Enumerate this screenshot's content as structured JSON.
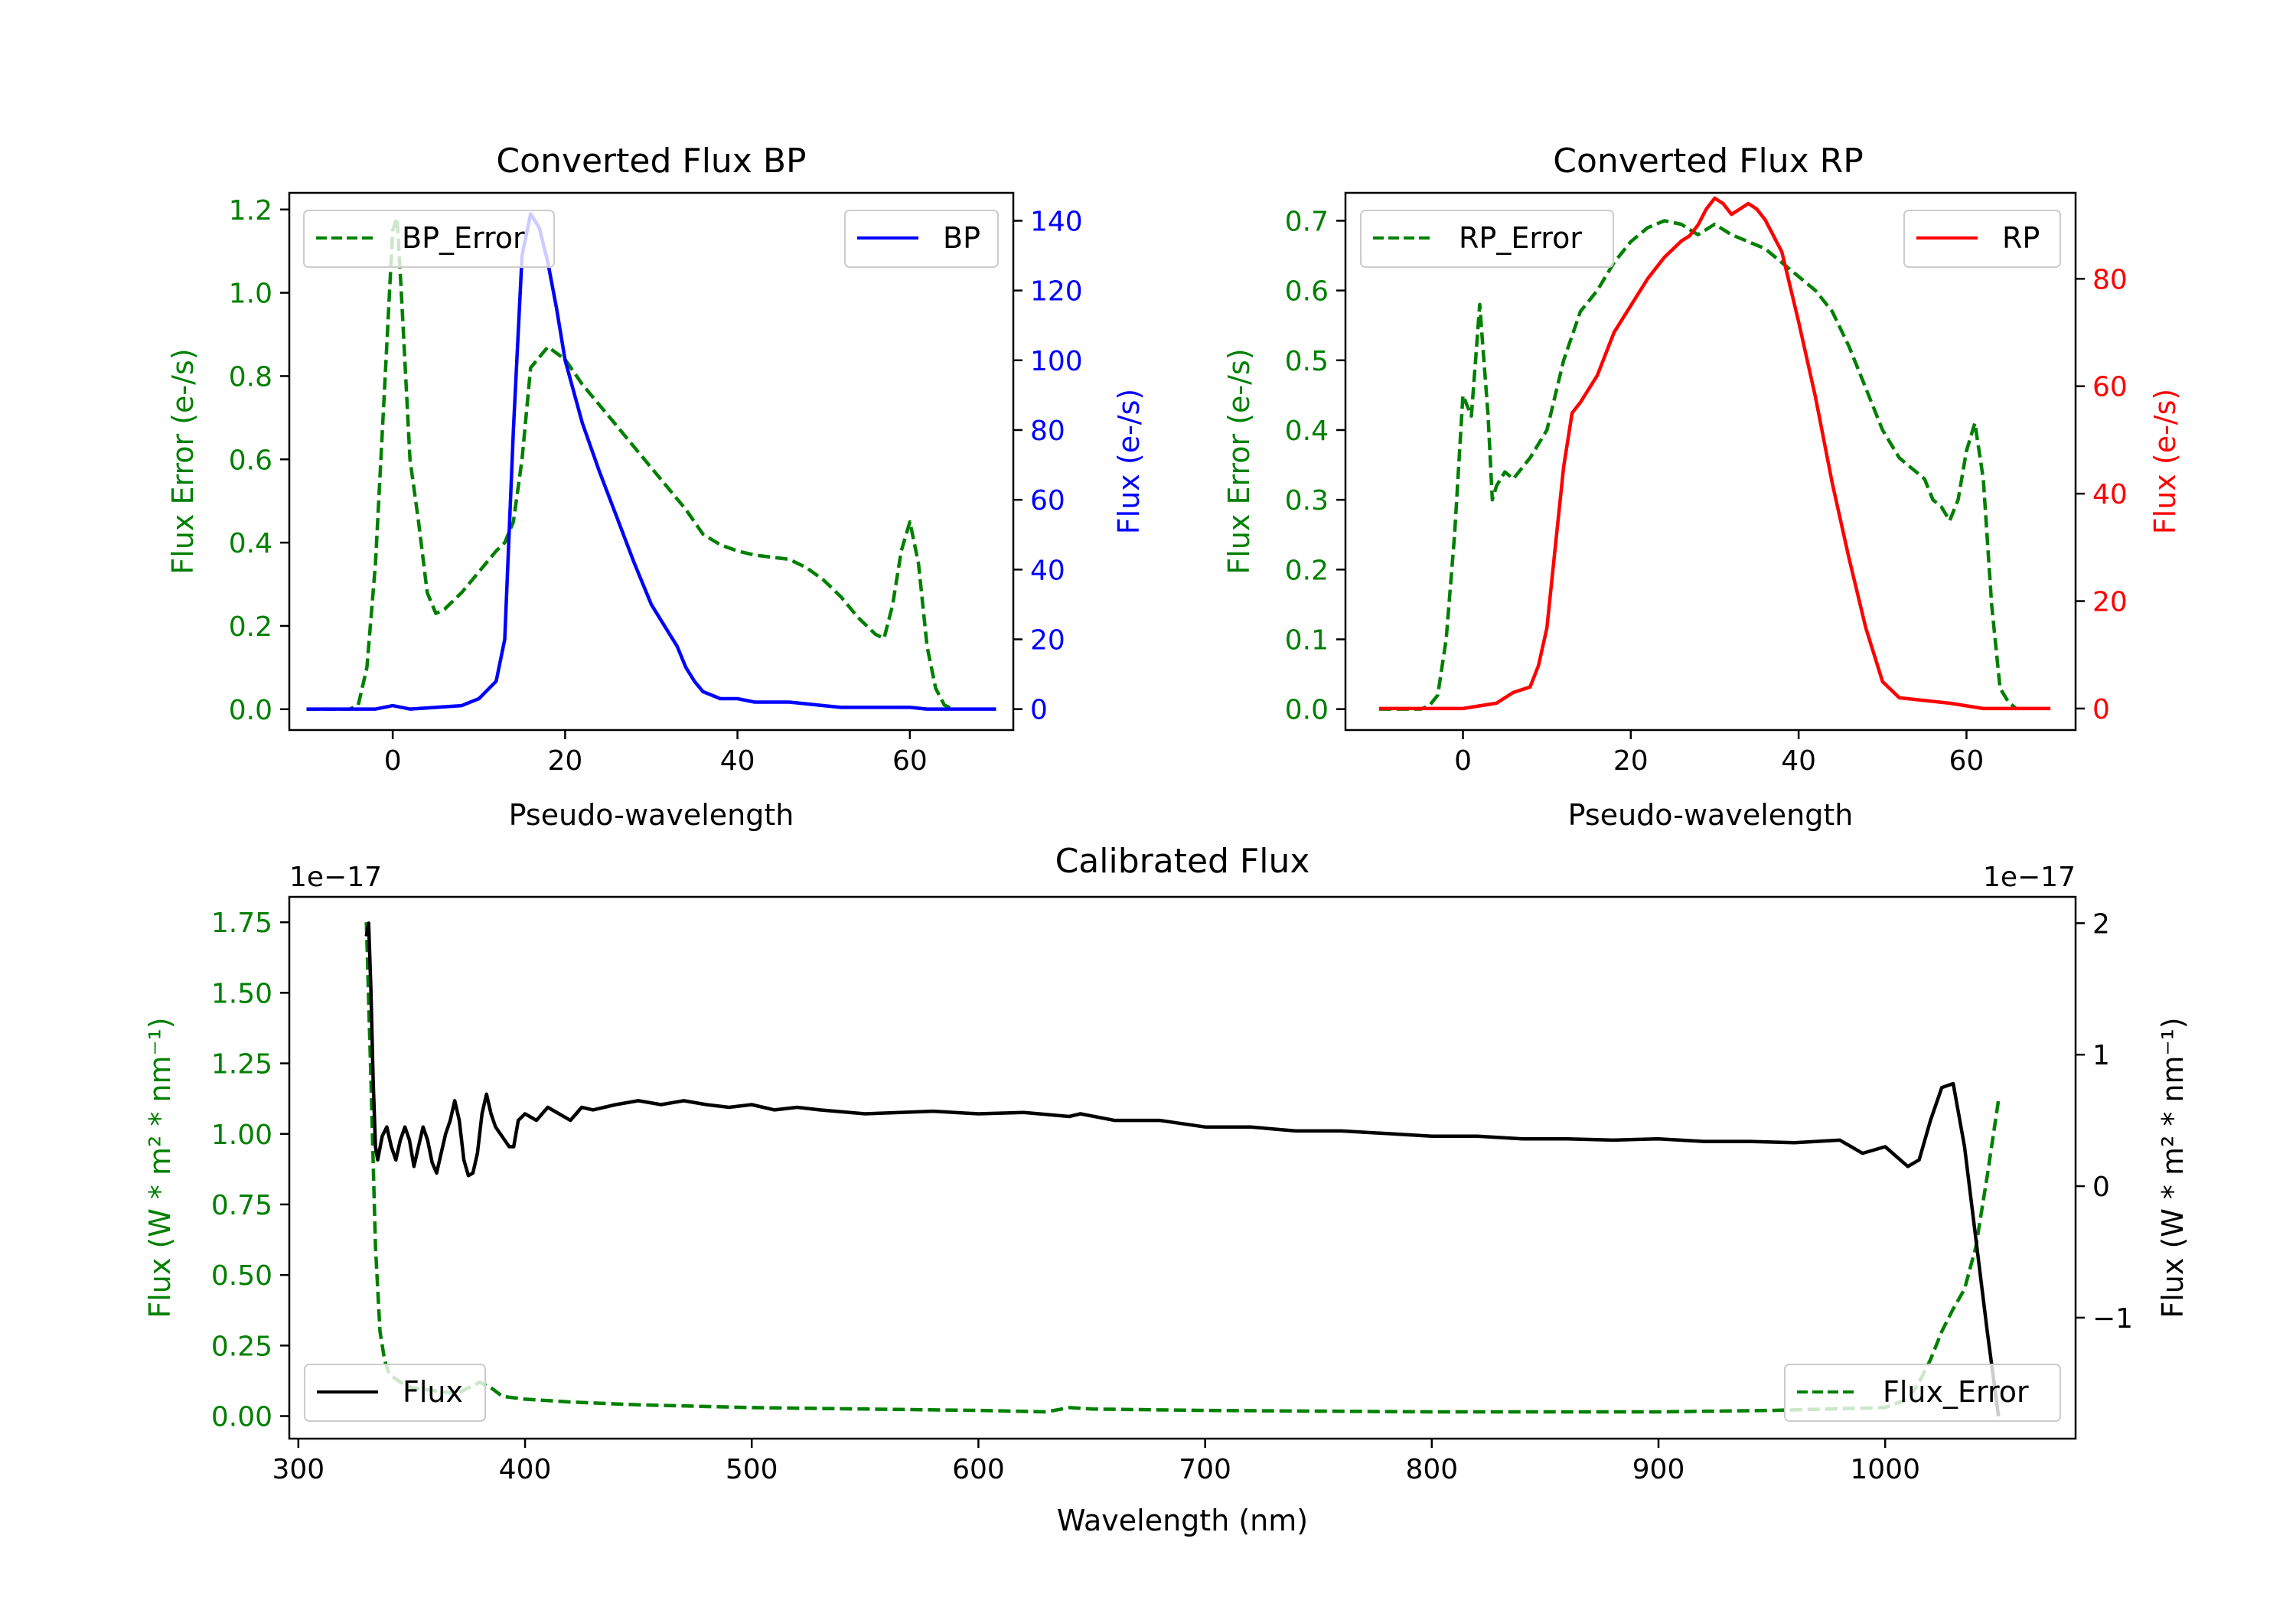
{
  "colors": {
    "green": "#008000",
    "blue": "#0000ff",
    "red": "#ff0000",
    "black": "#000000"
  },
  "chart_data": [
    {
      "id": "bp",
      "type": "line",
      "title": "Converted Flux BP",
      "xlabel": "Pseudo-wavelength",
      "ylabel_left": "Flux Error (e-/s)",
      "ylabel_right": "Flux (e-/s)",
      "xlim": [
        -12,
        72
      ],
      "ylim_left": [
        -0.05,
        1.24
      ],
      "ylim_right": [
        -6,
        148
      ],
      "xticks": [
        "0",
        "20",
        "40",
        "60"
      ],
      "yticks_left": [
        "0.0",
        "0.2",
        "0.4",
        "0.6",
        "0.8",
        "1.0",
        "1.2"
      ],
      "yticks_right": [
        "0",
        "20",
        "40",
        "60",
        "80",
        "100",
        "120",
        "140"
      ],
      "series": [
        {
          "name": "BP_Error",
          "axis": "left",
          "style": "dashed",
          "color": "#008000",
          "x": [
            -10,
            -5,
            -4,
            -3,
            -2,
            -1,
            0,
            0.5,
            1,
            2,
            3,
            4,
            5,
            6,
            8,
            10,
            12,
            13,
            14,
            15,
            16,
            18,
            20,
            22,
            24,
            26,
            28,
            30,
            32,
            34,
            36,
            38,
            40,
            42,
            44,
            46,
            48,
            50,
            52,
            54,
            56,
            57,
            58,
            59,
            60,
            61,
            62,
            63,
            64,
            65
          ],
          "y": [
            0,
            0,
            0.01,
            0.1,
            0.35,
            0.75,
            1.15,
            1.18,
            1.0,
            0.6,
            0.45,
            0.28,
            0.23,
            0.24,
            0.28,
            0.33,
            0.38,
            0.4,
            0.45,
            0.6,
            0.82,
            0.87,
            0.84,
            0.78,
            0.73,
            0.68,
            0.63,
            0.58,
            0.53,
            0.48,
            0.42,
            0.395,
            0.38,
            0.37,
            0.365,
            0.36,
            0.34,
            0.31,
            0.27,
            0.22,
            0.18,
            0.17,
            0.25,
            0.38,
            0.45,
            0.35,
            0.15,
            0.05,
            0.01,
            0
          ]
        },
        {
          "name": "BP",
          "axis": "right",
          "style": "solid",
          "color": "#0000ff",
          "x": [
            -10,
            -2,
            0,
            2,
            5,
            8,
            10,
            12,
            13,
            14,
            15,
            16,
            17,
            18,
            19,
            20,
            22,
            24,
            26,
            28,
            30,
            32,
            33,
            34,
            35,
            36,
            37,
            38,
            40,
            42,
            44,
            46,
            48,
            50,
            52,
            54,
            56,
            58,
            60,
            62,
            65,
            70
          ],
          "y": [
            0,
            0,
            1,
            0,
            0.5,
            1,
            3,
            8,
            20,
            80,
            130,
            142,
            138,
            128,
            115,
            100,
            82,
            68,
            55,
            42,
            30,
            22,
            18,
            12,
            8,
            5,
            4,
            3,
            3,
            2,
            2,
            2,
            1.5,
            1,
            0.5,
            0.5,
            0.5,
            0.5,
            0.5,
            0,
            0,
            0
          ]
        }
      ],
      "legend": [
        {
          "label": "BP_Error",
          "position": "top-left"
        },
        {
          "label": "BP",
          "position": "top-right"
        }
      ]
    },
    {
      "id": "rp",
      "type": "line",
      "title": "Converted Flux RP",
      "xlabel": "Pseudo-wavelength",
      "ylabel_left": "Flux Error (e-/s)",
      "ylabel_right": "Flux (e-/s)",
      "xlim": [
        -14,
        73
      ],
      "ylim_left": [
        -0.03,
        0.74
      ],
      "ylim_right": [
        -4,
        96
      ],
      "xticks": [
        "0",
        "20",
        "40",
        "60"
      ],
      "yticks_left": [
        "0.0",
        "0.1",
        "0.2",
        "0.3",
        "0.4",
        "0.5",
        "0.6",
        "0.7"
      ],
      "yticks_right": [
        "0",
        "20",
        "40",
        "60",
        "80"
      ],
      "series": [
        {
          "name": "RP_Error",
          "axis": "left",
          "style": "dashed",
          "color": "#008000",
          "x": [
            -10,
            -5,
            -4,
            -3,
            -2,
            -1,
            0,
            1,
            1.5,
            2,
            2.5,
            3,
            3.5,
            4,
            5,
            6,
            8,
            10,
            12,
            14,
            16,
            18,
            20,
            22,
            24,
            26,
            28,
            30,
            32,
            34,
            36,
            38,
            40,
            42,
            44,
            46,
            48,
            50,
            52,
            54,
            55,
            56,
            57,
            58,
            59,
            60,
            61,
            62,
            63,
            64,
            65,
            66
          ],
          "y": [
            0,
            0,
            0.005,
            0.02,
            0.1,
            0.25,
            0.45,
            0.42,
            0.5,
            0.58,
            0.5,
            0.42,
            0.3,
            0.32,
            0.34,
            0.33,
            0.36,
            0.4,
            0.5,
            0.57,
            0.6,
            0.64,
            0.67,
            0.69,
            0.7,
            0.695,
            0.68,
            0.695,
            0.68,
            0.67,
            0.66,
            0.64,
            0.62,
            0.6,
            0.57,
            0.52,
            0.46,
            0.4,
            0.36,
            0.34,
            0.33,
            0.3,
            0.29,
            0.27,
            0.3,
            0.37,
            0.41,
            0.33,
            0.15,
            0.03,
            0.01,
            0
          ]
        },
        {
          "name": "RP",
          "axis": "right",
          "style": "solid",
          "color": "#ff0000",
          "x": [
            -10,
            -2,
            0,
            2,
            4,
            5,
            6,
            8,
            9,
            10,
            11,
            12,
            13,
            14,
            16,
            18,
            20,
            22,
            24,
            26,
            27,
            28,
            29,
            30,
            31,
            32,
            33,
            34,
            35,
            36,
            38,
            40,
            42,
            44,
            46,
            48,
            50,
            52,
            55,
            58,
            60,
            62,
            65,
            70
          ],
          "y": [
            0,
            0,
            0,
            0.5,
            1,
            2,
            3,
            4,
            8,
            15,
            30,
            45,
            55,
            57,
            62,
            70,
            75,
            80,
            84,
            87,
            88,
            90,
            93,
            95,
            94,
            92,
            93,
            94,
            93,
            91,
            85,
            72,
            58,
            42,
            28,
            15,
            5,
            2,
            1.5,
            1,
            0.5,
            0,
            0,
            0
          ]
        }
      ],
      "legend": [
        {
          "label": "RP_Error",
          "position": "top-left"
        },
        {
          "label": "RP",
          "position": "top-right"
        }
      ]
    },
    {
      "id": "cal",
      "type": "line",
      "title": "Calibrated Flux",
      "xlabel": "Wavelength (nm)",
      "ylabel_left": "Flux (W * m² * nm⁻¹)",
      "ylabel_right": "Flux (W * m² * nm⁻¹)",
      "offset_left": "1e−17",
      "offset_right": "1e−17",
      "xlim": [
        296,
        1084
      ],
      "ylim_left": [
        -0.08,
        1.84
      ],
      "ylim_right": [
        -1.92,
        2.2
      ],
      "xticks": [
        "300",
        "400",
        "500",
        "600",
        "700",
        "800",
        "900",
        "1000"
      ],
      "yticks_left": [
        "0.00",
        "0.25",
        "0.50",
        "0.75",
        "1.00",
        "1.25",
        "1.50",
        "1.75"
      ],
      "yticks_right": [
        "−1",
        "0",
        "1",
        "2"
      ],
      "series": [
        {
          "name": "Flux_Error",
          "axis": "left",
          "style": "dashed",
          "color": "#008000",
          "x": [
            330,
            332,
            334,
            336,
            338,
            340,
            345,
            350,
            360,
            370,
            380,
            385,
            390,
            400,
            420,
            450,
            500,
            550,
            600,
            630,
            640,
            650,
            700,
            800,
            900,
            950,
            1000,
            1010,
            1015,
            1020,
            1025,
            1030,
            1035,
            1040,
            1045,
            1050
          ],
          "y": [
            1.75,
            1.2,
            0.6,
            0.3,
            0.2,
            0.15,
            0.12,
            0.1,
            0.09,
            0.08,
            0.12,
            0.1,
            0.07,
            0.06,
            0.05,
            0.04,
            0.03,
            0.025,
            0.02,
            0.015,
            0.03,
            0.025,
            0.02,
            0.015,
            0.015,
            0.02,
            0.03,
            0.06,
            0.12,
            0.2,
            0.3,
            0.38,
            0.45,
            0.6,
            0.85,
            1.12
          ]
        },
        {
          "name": "Flux",
          "axis": "right",
          "style": "solid",
          "color": "#000000",
          "x": [
            330,
            331,
            332,
            333,
            334,
            335,
            337,
            339,
            341,
            343,
            345,
            347,
            349,
            351,
            353,
            355,
            357,
            359,
            361,
            363,
            365,
            367,
            369,
            371,
            373,
            375,
            377,
            379,
            381,
            383,
            385,
            387,
            389,
            391,
            393,
            395,
            397,
            400,
            405,
            410,
            415,
            420,
            425,
            430,
            440,
            450,
            460,
            470,
            480,
            490,
            500,
            510,
            520,
            530,
            550,
            580,
            600,
            620,
            640,
            645,
            660,
            680,
            700,
            720,
            740,
            760,
            780,
            800,
            820,
            840,
            860,
            880,
            900,
            920,
            940,
            960,
            980,
            990,
            1000,
            1010,
            1015,
            1020,
            1025,
            1030,
            1035,
            1040,
            1045,
            1050
          ],
          "y": [
            1.9,
            2.0,
            1.5,
            0.8,
            0.3,
            0.2,
            0.38,
            0.45,
            0.3,
            0.2,
            0.35,
            0.45,
            0.35,
            0.15,
            0.3,
            0.45,
            0.35,
            0.18,
            0.1,
            0.25,
            0.4,
            0.5,
            0.65,
            0.5,
            0.2,
            0.08,
            0.1,
            0.25,
            0.55,
            0.7,
            0.55,
            0.45,
            0.4,
            0.35,
            0.3,
            0.3,
            0.5,
            0.55,
            0.5,
            0.6,
            0.55,
            0.5,
            0.6,
            0.58,
            0.62,
            0.65,
            0.62,
            0.65,
            0.62,
            0.6,
            0.62,
            0.58,
            0.6,
            0.58,
            0.55,
            0.57,
            0.55,
            0.56,
            0.53,
            0.55,
            0.5,
            0.5,
            0.45,
            0.45,
            0.42,
            0.42,
            0.4,
            0.38,
            0.38,
            0.36,
            0.36,
            0.35,
            0.36,
            0.34,
            0.34,
            0.33,
            0.35,
            0.25,
            0.3,
            0.15,
            0.2,
            0.5,
            0.75,
            0.78,
            0.3,
            -0.4,
            -1.1,
            -1.75
          ]
        }
      ],
      "legend": [
        {
          "label": "Flux",
          "position": "bottom-left"
        },
        {
          "label": "Flux_Error",
          "position": "bottom-right"
        }
      ]
    }
  ]
}
